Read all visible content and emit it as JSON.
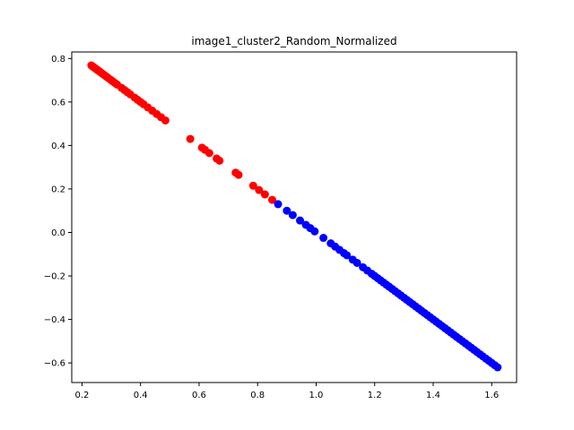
{
  "chart_data": {
    "type": "scatter",
    "title": "image1_cluster2_Random_Normalized",
    "xlabel": "",
    "ylabel": "",
    "xlim": [
      0.165,
      1.685
    ],
    "ylim": [
      -0.69,
      0.83
    ],
    "x_ticks": [
      0.2,
      0.4,
      0.6,
      0.8,
      1.0,
      1.2,
      1.4,
      1.6
    ],
    "x_tick_labels": [
      "0.2",
      "0.4",
      "0.6",
      "0.8",
      "1.0",
      "1.2",
      "1.4",
      "1.6"
    ],
    "y_ticks": [
      -0.6,
      -0.4,
      -0.2,
      0.0,
      0.2,
      0.4,
      0.6,
      0.8
    ],
    "y_tick_labels": [
      "−0.6",
      "−0.4",
      "−0.2",
      "0.0",
      "0.2",
      "0.4",
      "0.6",
      "0.8"
    ],
    "grid": false,
    "line": {
      "slope": -1.0,
      "intercept": 1.0
    },
    "series": [
      {
        "color": "#ff0000",
        "x": [
          0.232,
          0.237,
          0.242,
          0.247,
          0.252,
          0.258,
          0.264,
          0.27,
          0.276,
          0.283,
          0.29,
          0.298,
          0.305,
          0.313,
          0.32,
          0.335,
          0.345,
          0.355,
          0.365,
          0.38,
          0.39,
          0.4,
          0.41,
          0.425,
          0.44,
          0.455,
          0.47,
          0.485,
          0.57,
          0.61,
          0.62,
          0.635,
          0.66,
          0.67,
          0.725,
          0.735,
          0.785,
          0.805,
          0.825,
          0.85
        ],
        "y": [
          0.768,
          0.763,
          0.758,
          0.753,
          0.748,
          0.742,
          0.736,
          0.73,
          0.724,
          0.717,
          0.71,
          0.702,
          0.695,
          0.687,
          0.68,
          0.665,
          0.655,
          0.645,
          0.635,
          0.62,
          0.61,
          0.6,
          0.59,
          0.575,
          0.56,
          0.545,
          0.53,
          0.515,
          0.43,
          0.39,
          0.38,
          0.365,
          0.34,
          0.33,
          0.275,
          0.265,
          0.215,
          0.195,
          0.175,
          0.15
        ]
      },
      {
        "color": "#0000ff",
        "x": [
          0.87,
          0.9,
          0.92,
          0.945,
          0.965,
          0.98,
          0.995,
          1.025,
          1.05,
          1.065,
          1.08,
          1.095,
          1.105,
          1.125,
          1.14,
          1.16,
          1.175,
          1.19,
          1.2,
          1.21,
          1.22,
          1.23,
          1.24,
          1.25,
          1.26,
          1.27,
          1.28,
          1.29,
          1.3,
          1.31,
          1.32,
          1.33,
          1.34,
          1.35,
          1.36,
          1.37,
          1.38,
          1.39,
          1.4,
          1.41,
          1.42,
          1.43,
          1.44,
          1.45,
          1.46,
          1.47,
          1.48,
          1.49,
          1.5,
          1.51,
          1.52,
          1.53,
          1.54,
          1.55,
          1.56,
          1.57,
          1.58,
          1.59,
          1.6,
          1.61,
          1.62
        ],
        "y": [
          0.13,
          0.1,
          0.08,
          0.055,
          0.035,
          0.02,
          0.005,
          -0.025,
          -0.05,
          -0.065,
          -0.08,
          -0.095,
          -0.105,
          -0.125,
          -0.14,
          -0.16,
          -0.175,
          -0.19,
          -0.2,
          -0.21,
          -0.22,
          -0.23,
          -0.24,
          -0.25,
          -0.26,
          -0.27,
          -0.28,
          -0.29,
          -0.3,
          -0.31,
          -0.32,
          -0.33,
          -0.34,
          -0.35,
          -0.36,
          -0.37,
          -0.38,
          -0.39,
          -0.4,
          -0.41,
          -0.42,
          -0.43,
          -0.44,
          -0.45,
          -0.46,
          -0.47,
          -0.48,
          -0.49,
          -0.5,
          -0.51,
          -0.52,
          -0.53,
          -0.54,
          -0.55,
          -0.56,
          -0.57,
          -0.58,
          -0.59,
          -0.6,
          -0.61,
          -0.62
        ]
      }
    ]
  }
}
